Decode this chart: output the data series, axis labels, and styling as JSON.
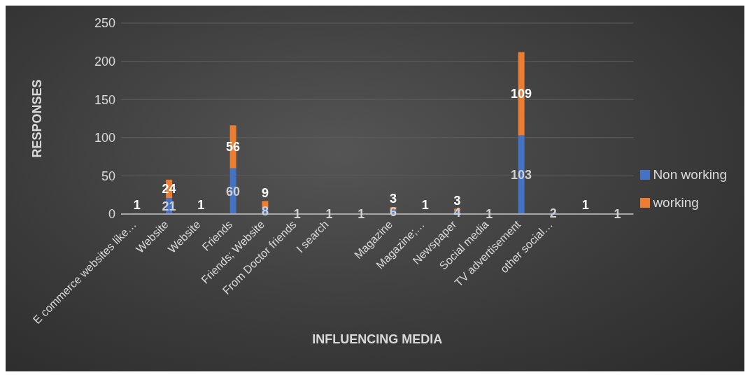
{
  "chart_data": {
    "type": "bar",
    "stacked": true,
    "xlabel": "INFLUENCING MEDIA",
    "ylabel": "RESPONSES",
    "categories": [
      "E commerce websites like…",
      "Website",
      "Website",
      "Friends",
      "Friends; Website",
      "From Doctor friends",
      "I search",
      null,
      "Magazine",
      "Magazine;…",
      "Newspaper",
      "Social media",
      "TV advertisement",
      "other social…",
      null,
      null
    ],
    "series": [
      {
        "name": "Non working",
        "color": "#4472c4",
        "values": [
          null,
          21,
          null,
          60,
          8,
          1,
          1,
          1,
          6,
          null,
          4,
          1,
          103,
          2,
          null,
          1
        ]
      },
      {
        "name": "working",
        "color": "#ed7d31",
        "values": [
          1,
          24,
          1,
          56,
          9,
          null,
          null,
          null,
          3,
          1,
          3,
          null,
          109,
          null,
          1,
          null
        ]
      }
    ],
    "ylim": [
      0,
      250
    ],
    "yticks": [
      0,
      50,
      100,
      150,
      200,
      250
    ],
    "grid": "y",
    "legend": "right",
    "data_labels": true
  }
}
